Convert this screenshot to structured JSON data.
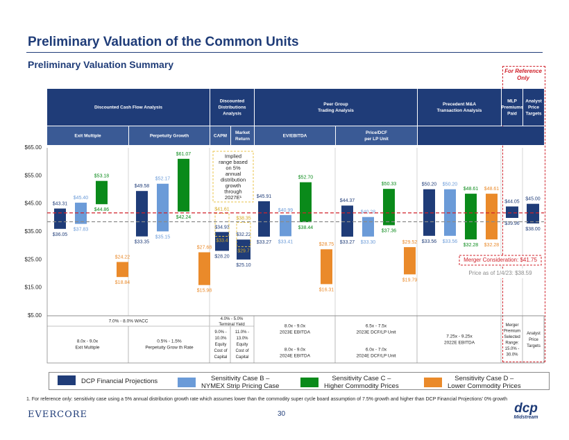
{
  "page": {
    "title": "Preliminary Valuation of the Common Units",
    "subtitle": "Preliminary Valuation Summary",
    "reference_note": "For Reference Only",
    "page_number": "30",
    "footnote": "1.   For reference only: sensitivity case using a 5% annual distribution growth rate which assumes lower than the commodity super cycle board assumption of 7.5% growth and higher than DCP Financial Projections' 0% growth",
    "brand_left": "EVERCORE",
    "brand_right": "dcp",
    "brand_right_sub": "Midstream"
  },
  "colors": {
    "dcp": "#1f3c78",
    "case_b": "#6b9bd8",
    "case_c": "#0a8a1a",
    "case_d": "#ea8a2a",
    "header": "#1f3c78",
    "subheader": "#3a5a95",
    "ref_dash": "#d0212a"
  },
  "legend": [
    {
      "label": "DCP Financial Projections",
      "color_key": "dcp"
    },
    {
      "label": "Sensitivity Case B –\nNYMEX Strip Pricing Case",
      "color_key": "case_b"
    },
    {
      "label": "Sensitivity Case C –\nHigher Commodity Prices",
      "color_key": "case_c"
    },
    {
      "label": "Sensitivity Case D –\nLower Commodity Prices",
      "color_key": "case_d"
    }
  ],
  "headers": {
    "top": [
      {
        "label": "Discounted Cash Flow Analysis"
      },
      {
        "label": "Discounted\nDistributions\nAnalysis"
      },
      {
        "label": "Peer Group\nTrading Analysis"
      },
      {
        "label": "Precedent M&A\nTransaction Analysis"
      },
      {
        "label": "MLP\nPremiums\nPaid"
      },
      {
        "label": "Analyst\nPrice\nTargets"
      }
    ],
    "sub": [
      {
        "label": "Exit Multiple"
      },
      {
        "label": "Perpetuity Growth"
      },
      {
        "label": "CAPM"
      },
      {
        "label": "Market\nReturn"
      },
      {
        "label": "EV/EBITDA"
      },
      {
        "label": "Price/DCF\nper LP Unit"
      }
    ]
  },
  "bottom_table": {
    "dcf_wacc": "7.0% - 8.0% WACC",
    "exit_multiple": "8.0x - 9.0x\nExit Multiple",
    "perpetuity": "0.5% - 1.5%\nPerpetuity Grow th Rate",
    "terminal_yield": "4.0% - 5.0%\nTerminal Yield",
    "capm": "9.0% -\n10.0%\nEquity\nCost of\nCapital",
    "market_return": "11.0% -\n13.0%\nEquity\nCost of\nCapital",
    "ev_ebitda_2023": "8.0x - 9.0x\n2023E EBITDA",
    "ev_ebitda_2024": "8.0x - 9.0x\n2024E EBITDA",
    "pdcf_2023": "6.5x - 7.5x\n2023E DCF/LP Unit",
    "pdcf_2024": "6.0x - 7.0x\n2024E DCF/LP Unit",
    "precedent": "7.25x - 9.25x\n2022E EBITDA",
    "premiums": "Merger\nPremium\nSelected\nRange:\n15.0% -\n30.0%",
    "analyst": "Analyst\nPrice\nTargets"
  },
  "chart_data": {
    "type": "floating-bar",
    "title": "Preliminary Valuation Summary",
    "ylim": [
      5,
      65
    ],
    "yticks": [
      "$65.00",
      "$55.00",
      "$45.00",
      "$35.00",
      "$25.00",
      "$15.00",
      "$5.00"
    ],
    "ytick_values": [
      65,
      55,
      45,
      35,
      25,
      15,
      5
    ],
    "series": [
      "DCP Financial Projections",
      "Sensitivity Case B – NYMEX Strip Pricing Case",
      "Sensitivity Case C – Higher Commodity Prices",
      "Sensitivity Case D – Lower Commodity Prices"
    ],
    "bars": [
      {
        "group": "Exit Multiple",
        "case": "dcp",
        "low": 36.05,
        "high": 43.31,
        "low_label": "$36.05",
        "high_label": "$43.31"
      },
      {
        "group": "Exit Multiple",
        "case": "case_b",
        "low": 37.83,
        "high": 45.4,
        "low_label": "$37.83",
        "high_label": "$45.40"
      },
      {
        "group": "Exit Multiple",
        "case": "case_c",
        "low": 44.86,
        "high": 53.18,
        "low_label": "$44.86",
        "high_label": "$53.18"
      },
      {
        "group": "Exit Multiple",
        "case": "case_d",
        "low": 18.84,
        "high": 24.22,
        "low_label": "$18.84",
        "high_label": "$24.22"
      },
      {
        "group": "Perpetuity Growth",
        "case": "dcp",
        "low": 33.35,
        "high": 49.58,
        "low_label": "$33.35",
        "high_label": "$49.58"
      },
      {
        "group": "Perpetuity Growth",
        "case": "case_b",
        "low": 35.15,
        "high": 52.17,
        "low_label": "$35.15",
        "high_label": "$52.17"
      },
      {
        "group": "Perpetuity Growth",
        "case": "case_c",
        "low": 42.24,
        "high": 61.07,
        "low_label": "$42.24",
        "high_label": "$61.07"
      },
      {
        "group": "Perpetuity Growth",
        "case": "case_d",
        "low": 15.98,
        "high": 27.68,
        "low_label": "$15.98",
        "high_label": "$27.68"
      },
      {
        "group": "CAPM",
        "case": "dcp",
        "low": 28.2,
        "high": 34.93,
        "low_label": "$28.20",
        "high_label": "$34.93"
      },
      {
        "group": "CAPM",
        "case": "dcp_ref",
        "low": 33.4,
        "high": 41.61,
        "low_label": "$33.4",
        "high_label": "$41.61"
      },
      {
        "group": "Market Return",
        "case": "dcp",
        "low": 25.1,
        "high": 32.22,
        "low_label": "$25.10",
        "high_label": "$32.22"
      },
      {
        "group": "Market Return",
        "case": "dcp_ref",
        "low": 29.7,
        "high": 38.35,
        "low_label": "$29.7",
        "high_label": "$38.35"
      },
      {
        "group": "EV/EBITDA",
        "case": "dcp",
        "low": 33.27,
        "high": 45.91,
        "low_label": "$33.27",
        "high_label": "$45.91"
      },
      {
        "group": "EV/EBITDA",
        "case": "case_b",
        "low": 33.41,
        "high": 40.99,
        "low_label": "$33.41",
        "high_label": "$40.99"
      },
      {
        "group": "EV/EBITDA",
        "case": "case_c",
        "low": 38.44,
        "high": 52.7,
        "low_label": "$38.44",
        "high_label": "$52.70"
      },
      {
        "group": "EV/EBITDA",
        "case": "case_d",
        "low": 16.31,
        "high": 28.75,
        "low_label": "$16.31",
        "high_label": "$28.75"
      },
      {
        "group": "Price/DCF",
        "case": "dcp",
        "low": 33.27,
        "high": 44.37,
        "low_label": "$33.27",
        "high_label": "$44.37"
      },
      {
        "group": "Price/DCF",
        "case": "case_b",
        "low": 33.3,
        "high": 40.28,
        "low_label": "$33.30",
        "high_label": "$40.28"
      },
      {
        "group": "Price/DCF",
        "case": "case_c",
        "low": 37.36,
        "high": 50.33,
        "low_label": "$37.36",
        "high_label": "$50.33"
      },
      {
        "group": "Price/DCF",
        "case": "case_d",
        "low": 19.79,
        "high": 29.52,
        "low_label": "$19.79",
        "high_label": "$29.52"
      },
      {
        "group": "Precedent M&A",
        "case": "dcp",
        "low": 33.56,
        "high": 50.2,
        "low_label": "$33.56",
        "high_label": "$50.20"
      },
      {
        "group": "Precedent M&A",
        "case": "case_b",
        "low": 33.56,
        "high": 50.2,
        "low_label": "$33.56",
        "high_label": "$50.20"
      },
      {
        "group": "Precedent M&A",
        "case": "case_c",
        "low": 32.28,
        "high": 48.61,
        "low_label": "$32.28",
        "high_label": "$48.61"
      },
      {
        "group": "Precedent M&A",
        "case": "case_d",
        "low": 32.28,
        "high": 48.61,
        "low_label": "$32.28",
        "high_label": "$48.61"
      },
      {
        "group": "MLP Premiums Paid",
        "case": "dcp",
        "low": 39.96,
        "high": 44.05,
        "low_label": "$39.96",
        "high_label": "$44.05"
      },
      {
        "group": "Analyst Price Targets",
        "case": "dcp",
        "low": 38.0,
        "high": 45.0,
        "low_label": "$38.00",
        "high_label": "$45.00"
      }
    ],
    "reference_lines": [
      {
        "label": "Merger Consideration: $41.75",
        "value": 41.75,
        "color": "#d0212a"
      },
      {
        "label": "Price as of 1/4/23: $38.59",
        "value": 38.59,
        "color": "#8a8a8a"
      }
    ],
    "annotation": "Implied\nrange based\non 5%\nannual\ndistribution\ngrowth\nthrough\n2027E¹"
  }
}
